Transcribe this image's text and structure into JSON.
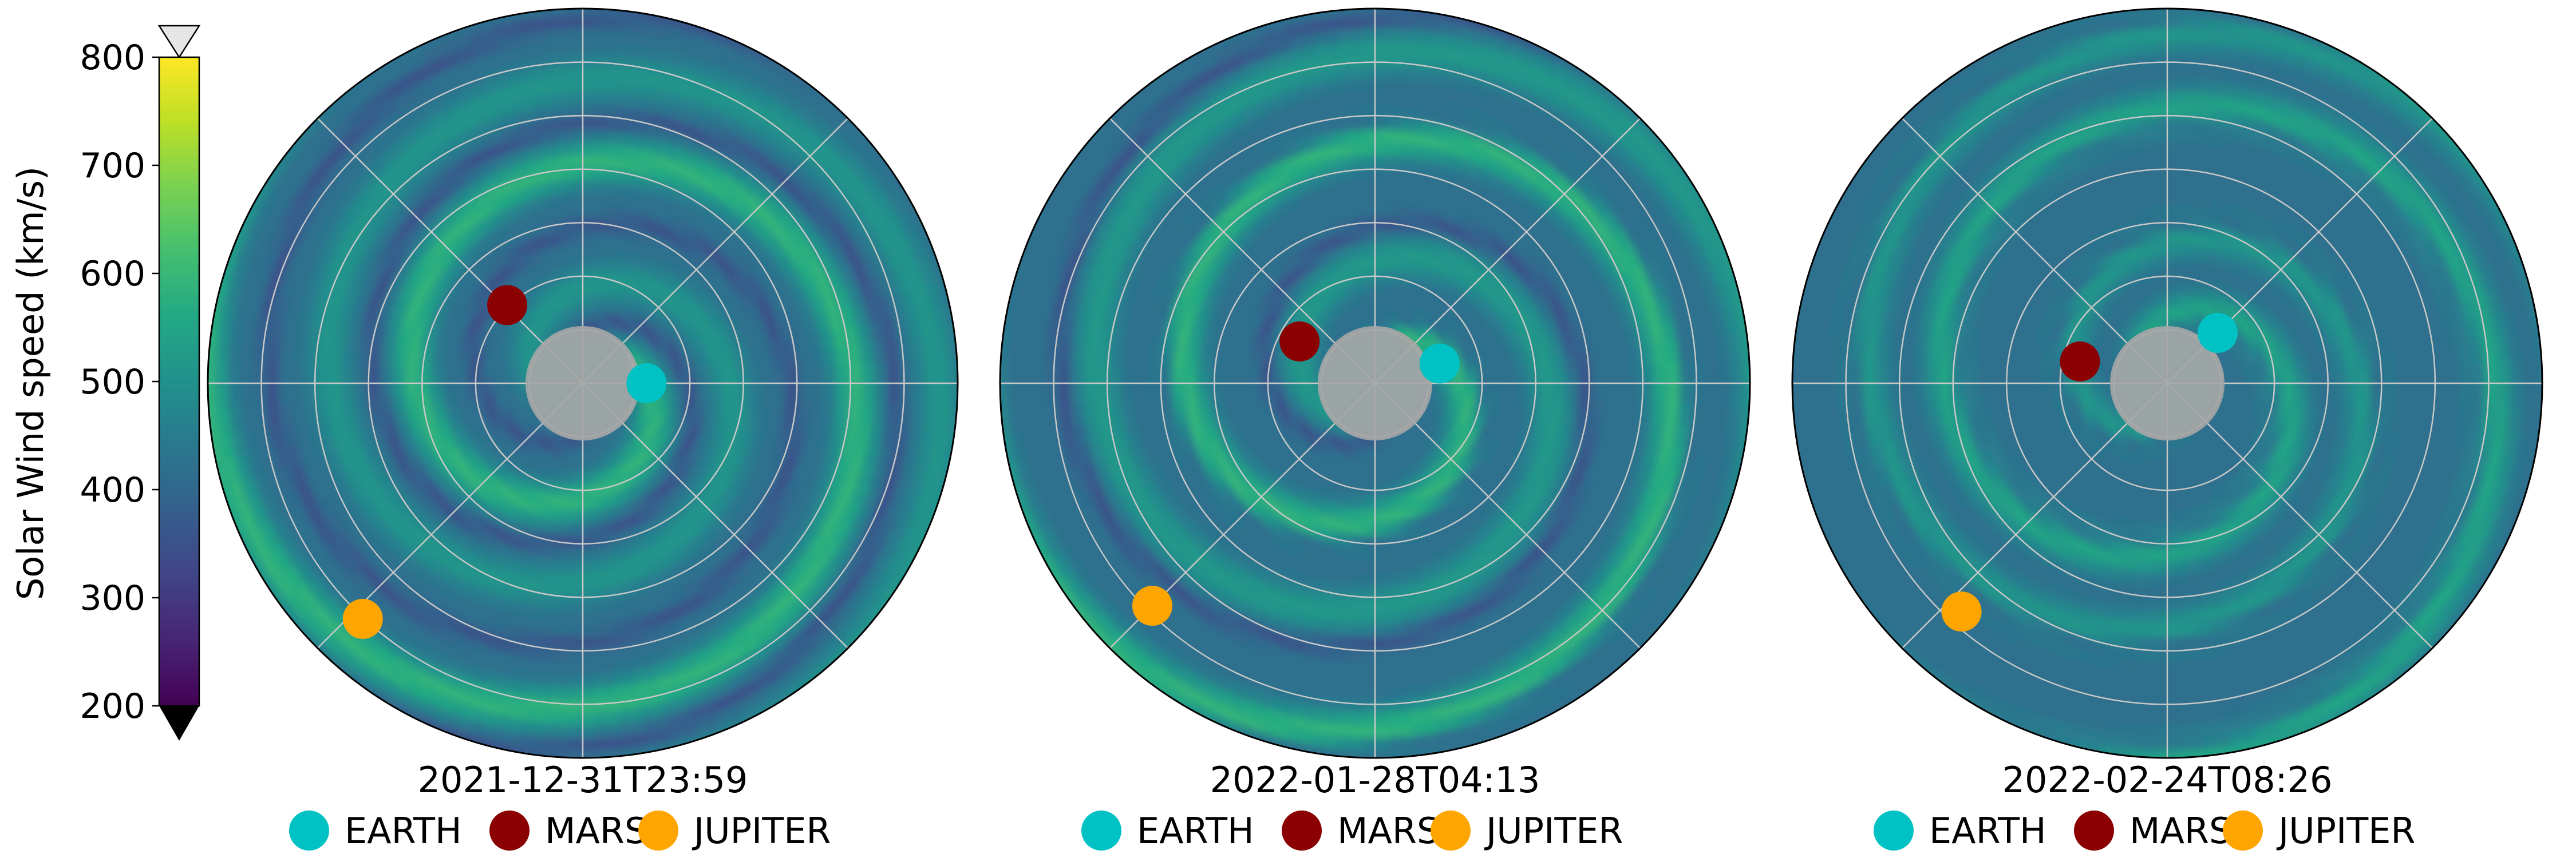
{
  "colorbar": {
    "label": "Solar Wind speed (km/s)",
    "min": 200,
    "max": 800,
    "ticks": [
      "200",
      "300",
      "400",
      "500",
      "600",
      "700",
      "800"
    ],
    "colormap": "viridis",
    "extend_low_color": "#000000",
    "extend_high_color": "#e6e6e6"
  },
  "legend_items": [
    {
      "label": "EARTH",
      "color": "#00c2c4"
    },
    {
      "label": "MARS",
      "color": "#8b0000"
    },
    {
      "label": "JUPITER",
      "color": "#ffa500"
    }
  ],
  "chart_data": [
    {
      "type": "polar-heatmap",
      "title": "2021-12-31T23:59",
      "grid": true,
      "planets": [
        {
          "name": "EARTH",
          "angle_deg": 0,
          "radius_frac": 0.17
        },
        {
          "name": "MARS",
          "angle_deg": 134,
          "radius_frac": 0.29
        },
        {
          "name": "JUPITER",
          "angle_deg": 227,
          "radius_frac": 0.86
        }
      ],
      "fast_streams": [
        {
          "offset_deg": 110,
          "strength": 1.0
        },
        {
          "offset_deg": 255,
          "strength": 0.55
        }
      ]
    },
    {
      "type": "polar-heatmap",
      "title": "2022-01-28T04:13",
      "grid": true,
      "planets": [
        {
          "name": "EARTH",
          "angle_deg": 17,
          "radius_frac": 0.18
        },
        {
          "name": "MARS",
          "angle_deg": 151,
          "radius_frac": 0.23
        },
        {
          "name": "JUPITER",
          "angle_deg": 225,
          "radius_frac": 0.84
        }
      ],
      "fast_streams": [
        {
          "offset_deg": 150,
          "strength": 1.0
        },
        {
          "offset_deg": 300,
          "strength": 0.6
        }
      ]
    },
    {
      "type": "polar-heatmap",
      "title": "2022-02-24T08:26",
      "grid": true,
      "planets": [
        {
          "name": "EARTH",
          "angle_deg": 45,
          "radius_frac": 0.19
        },
        {
          "name": "MARS",
          "angle_deg": 166,
          "radius_frac": 0.24
        },
        {
          "name": "JUPITER",
          "angle_deg": 228,
          "radius_frac": 0.82
        }
      ],
      "fast_streams": [
        {
          "offset_deg": 200,
          "strength": 0.8
        },
        {
          "offset_deg": 340,
          "strength": 0.6
        }
      ]
    }
  ]
}
